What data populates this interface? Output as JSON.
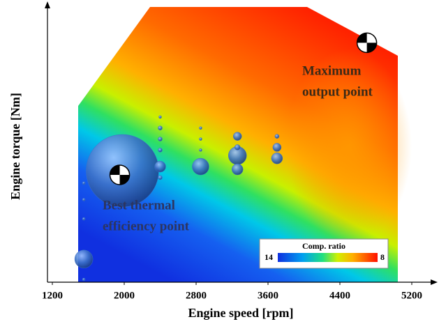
{
  "chart_data": {
    "type": "bubble",
    "x_label": "Engine speed [rpm]",
    "y_label": "Engine torque [Nm]",
    "xlim": [
      1200,
      5200
    ],
    "xticks": [
      1200,
      2000,
      2800,
      3600,
      4400,
      5200
    ],
    "ylim": [
      0,
      100
    ],
    "bubble_color": "#3d72c8",
    "x": [
      1980,
      1550,
      2400,
      2400,
      2400,
      2400,
      2400,
      2400,
      2850,
      2850,
      2850,
      2850,
      3260,
      3260,
      3260,
      3260,
      3700,
      3700,
      3700,
      1550,
      1550,
      1550,
      1550
    ],
    "y": [
      40.5,
      8.4,
      42,
      60,
      56,
      52,
      48,
      38,
      42,
      56,
      52,
      48,
      46,
      53,
      41,
      49,
      45,
      49,
      53,
      23,
      30,
      36,
      1
    ],
    "size": [
      52,
      13,
      8,
      2,
      3,
      3,
      3,
      3,
      12,
      2,
      2,
      2,
      13,
      6,
      8,
      4,
      8,
      6,
      3,
      2,
      2,
      2,
      2
    ],
    "points": [
      {
        "x": 1950,
        "y": 39
      },
      {
        "x": 4700,
        "y": 87
      }
    ],
    "annotations": [
      {
        "lines": [
          "Maximum",
          "output point"
        ],
        "color": "#3b2a16"
      },
      {
        "lines": [
          "Best thermal",
          "efficiency point"
        ],
        "color": "#2c3560"
      }
    ],
    "colorbar": {
      "title": "Comp. ratio",
      "range": [
        14,
        8
      ]
    }
  }
}
